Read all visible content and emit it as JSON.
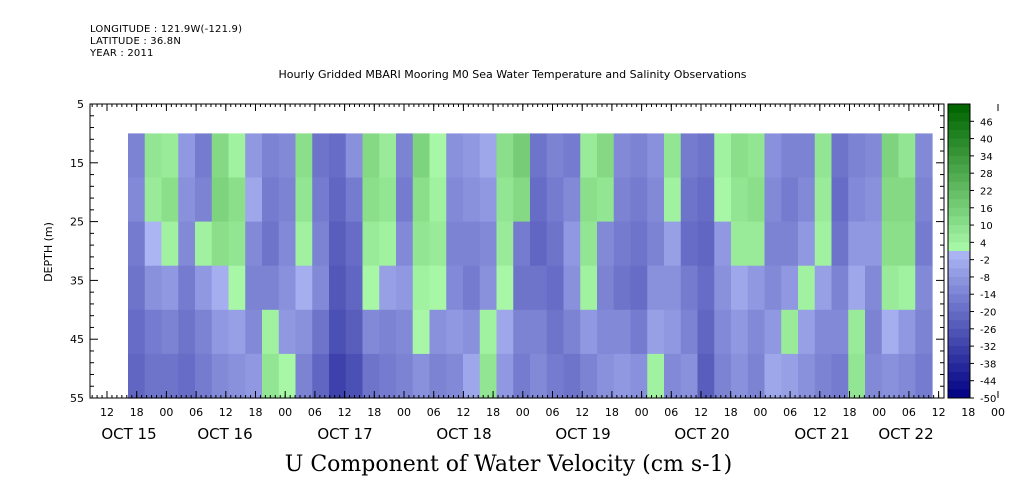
{
  "header": {
    "longitude": "LONGITUDE : 121.9W(-121.9)",
    "latitude": "LATITUDE : 36.8N",
    "year": "YEAR : 2011"
  },
  "chart_data": {
    "type": "heatmap",
    "title": "Hourly Gridded MBARI Mooring M0 Sea Water Temperature and Salinity Observations",
    "xlabel": "U Component of Water Velocity (cm s-1)",
    "ylabel": "DEPTH (m)",
    "y_ticks": [
      5,
      15,
      25,
      35,
      45,
      55
    ],
    "y_range": [
      5,
      55
    ],
    "data_depth_range": [
      10,
      55
    ],
    "x_hour_ticks": [
      "12",
      "18",
      "00",
      "06",
      "12",
      "18",
      "00",
      "06",
      "12",
      "18",
      "00",
      "06",
      "12",
      "18",
      "00",
      "06",
      "12",
      "18",
      "00",
      "06",
      "12",
      "18",
      "00",
      "06",
      "12",
      "18",
      "00",
      "06",
      "12",
      "18",
      "00",
      "06"
    ],
    "x_day_labels": [
      "OCT 15",
      "OCT 16",
      "OCT 17",
      "OCT 18",
      "OCT 19",
      "OCT 20",
      "OCT 21",
      "OCT 22"
    ],
    "colorbar_labels": [
      "46",
      "40",
      "34",
      "28",
      "22",
      "16",
      "10",
      "4",
      "-2",
      "-8",
      "-14",
      "-20",
      "-26",
      "-32",
      "-38",
      "-44",
      "-50"
    ],
    "colorbar_range": [
      -50,
      52
    ],
    "columns": [
      [
        -14,
        -12,
        -16,
        -18,
        -20,
        -22
      ],
      [
        8,
        6,
        0,
        -10,
        -16,
        -18
      ],
      [
        6,
        10,
        4,
        -8,
        -14,
        -18
      ],
      [
        -8,
        -10,
        -12,
        -16,
        -18,
        -20
      ],
      [
        -16,
        -14,
        4,
        -8,
        -14,
        -16
      ],
      [
        12,
        14,
        10,
        -2,
        -8,
        -12
      ],
      [
        4,
        10,
        8,
        2,
        -6,
        -10
      ],
      [
        -8,
        -4,
        -12,
        -14,
        -12,
        -8
      ],
      [
        -14,
        -16,
        -18,
        -14,
        4,
        8
      ],
      [
        -12,
        -14,
        -12,
        -10,
        -8,
        2
      ],
      [
        10,
        8,
        4,
        -2,
        -10,
        -14
      ],
      [
        -18,
        -16,
        -14,
        -12,
        -18,
        -22
      ],
      [
        -20,
        -22,
        -24,
        -26,
        -28,
        -32
      ],
      [
        -10,
        -16,
        -20,
        -22,
        -24,
        -28
      ],
      [
        12,
        10,
        6,
        2,
        -12,
        -18
      ],
      [
        6,
        8,
        4,
        -6,
        -14,
        -16
      ],
      [
        -14,
        -16,
        -12,
        -8,
        -12,
        -14
      ],
      [
        14,
        10,
        8,
        4,
        2,
        -10
      ],
      [
        2,
        4,
        6,
        2,
        -10,
        -14
      ],
      [
        -10,
        -12,
        -14,
        -12,
        -8,
        -12
      ],
      [
        -8,
        -10,
        -14,
        -16,
        -10,
        -4
      ],
      [
        -4,
        -8,
        -12,
        -10,
        4,
        8
      ],
      [
        10,
        8,
        6,
        2,
        -4,
        -8
      ],
      [
        16,
        12,
        -16,
        -18,
        -14,
        -16
      ],
      [
        -18,
        -20,
        -22,
        -18,
        -14,
        -12
      ],
      [
        -14,
        -16,
        -18,
        -20,
        -18,
        -16
      ],
      [
        -16,
        -12,
        -8,
        -10,
        -14,
        -18
      ],
      [
        6,
        10,
        8,
        4,
        -8,
        -14
      ],
      [
        12,
        8,
        -12,
        -14,
        -12,
        -10
      ],
      [
        -12,
        -14,
        -16,
        -18,
        -12,
        -8
      ],
      [
        -14,
        -16,
        -18,
        -20,
        -16,
        -10
      ],
      [
        -10,
        -12,
        -14,
        -10,
        -6,
        4
      ],
      [
        8,
        4,
        -6,
        -10,
        -8,
        -12
      ],
      [
        -16,
        -18,
        -20,
        -16,
        -14,
        -10
      ],
      [
        -18,
        -20,
        -22,
        -20,
        -22,
        -24
      ],
      [
        4,
        2,
        -8,
        -10,
        -12,
        -14
      ],
      [
        10,
        8,
        6,
        -4,
        -8,
        -10
      ],
      [
        8,
        10,
        6,
        -8,
        -12,
        -14
      ],
      [
        -10,
        -12,
        -14,
        -12,
        -8,
        -4
      ],
      [
        -14,
        -16,
        -14,
        -8,
        6,
        -6
      ],
      [
        -14,
        -12,
        -8,
        4,
        -6,
        -10
      ],
      [
        8,
        6,
        4,
        -6,
        -12,
        -14
      ],
      [
        -18,
        -20,
        -18,
        -14,
        -12,
        -16
      ],
      [
        -14,
        -12,
        -8,
        -4,
        6,
        8
      ],
      [
        -12,
        -10,
        -8,
        -12,
        -14,
        -12
      ],
      [
        14,
        12,
        10,
        6,
        -2,
        -10
      ],
      [
        8,
        12,
        10,
        4,
        -8,
        -12
      ],
      [
        -12,
        -14,
        -16,
        -12,
        -14,
        -16
      ]
    ]
  }
}
